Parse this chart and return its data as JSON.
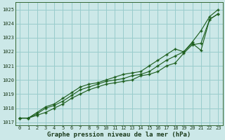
{
  "title": "Graphe pression niveau de la mer (hPa)",
  "background_color": "#cce8e8",
  "grid_color": "#99cccc",
  "line_color": "#1a5c1a",
  "xlim": [
    -0.5,
    23.5
  ],
  "ylim": [
    1016.8,
    1025.5
  ],
  "yticks": [
    1017,
    1018,
    1019,
    1020,
    1021,
    1022,
    1023,
    1024,
    1025
  ],
  "xticks": [
    0,
    1,
    2,
    3,
    4,
    5,
    6,
    7,
    8,
    9,
    10,
    11,
    12,
    13,
    14,
    15,
    16,
    17,
    18,
    19,
    20,
    21,
    22,
    23
  ],
  "series": [
    [
      1017.3,
      1017.3,
      1017.5,
      1017.7,
      1018.0,
      1018.3,
      1018.7,
      1019.0,
      1019.3,
      1019.5,
      1019.7,
      1019.8,
      1019.9,
      1020.0,
      1020.3,
      1020.4,
      1020.6,
      1021.0,
      1021.2,
      1021.9,
      1022.5,
      1022.6,
      1024.3,
      1024.7
    ],
    [
      1017.3,
      1017.3,
      1017.6,
      1018.0,
      1018.2,
      1018.5,
      1018.9,
      1019.3,
      1019.5,
      1019.7,
      1019.9,
      1020.0,
      1020.1,
      1020.3,
      1020.4,
      1020.6,
      1021.0,
      1021.4,
      1021.7,
      1022.0,
      1022.6,
      1022.1,
      1024.3,
      1024.7
    ],
    [
      1017.3,
      1017.3,
      1017.7,
      1018.1,
      1018.3,
      1018.7,
      1019.1,
      1019.5,
      1019.7,
      1019.8,
      1020.0,
      1020.2,
      1020.4,
      1020.5,
      1020.6,
      1021.0,
      1021.4,
      1021.8,
      1022.2,
      1022.0,
      1022.7,
      1023.5,
      1024.5,
      1025.0
    ]
  ]
}
